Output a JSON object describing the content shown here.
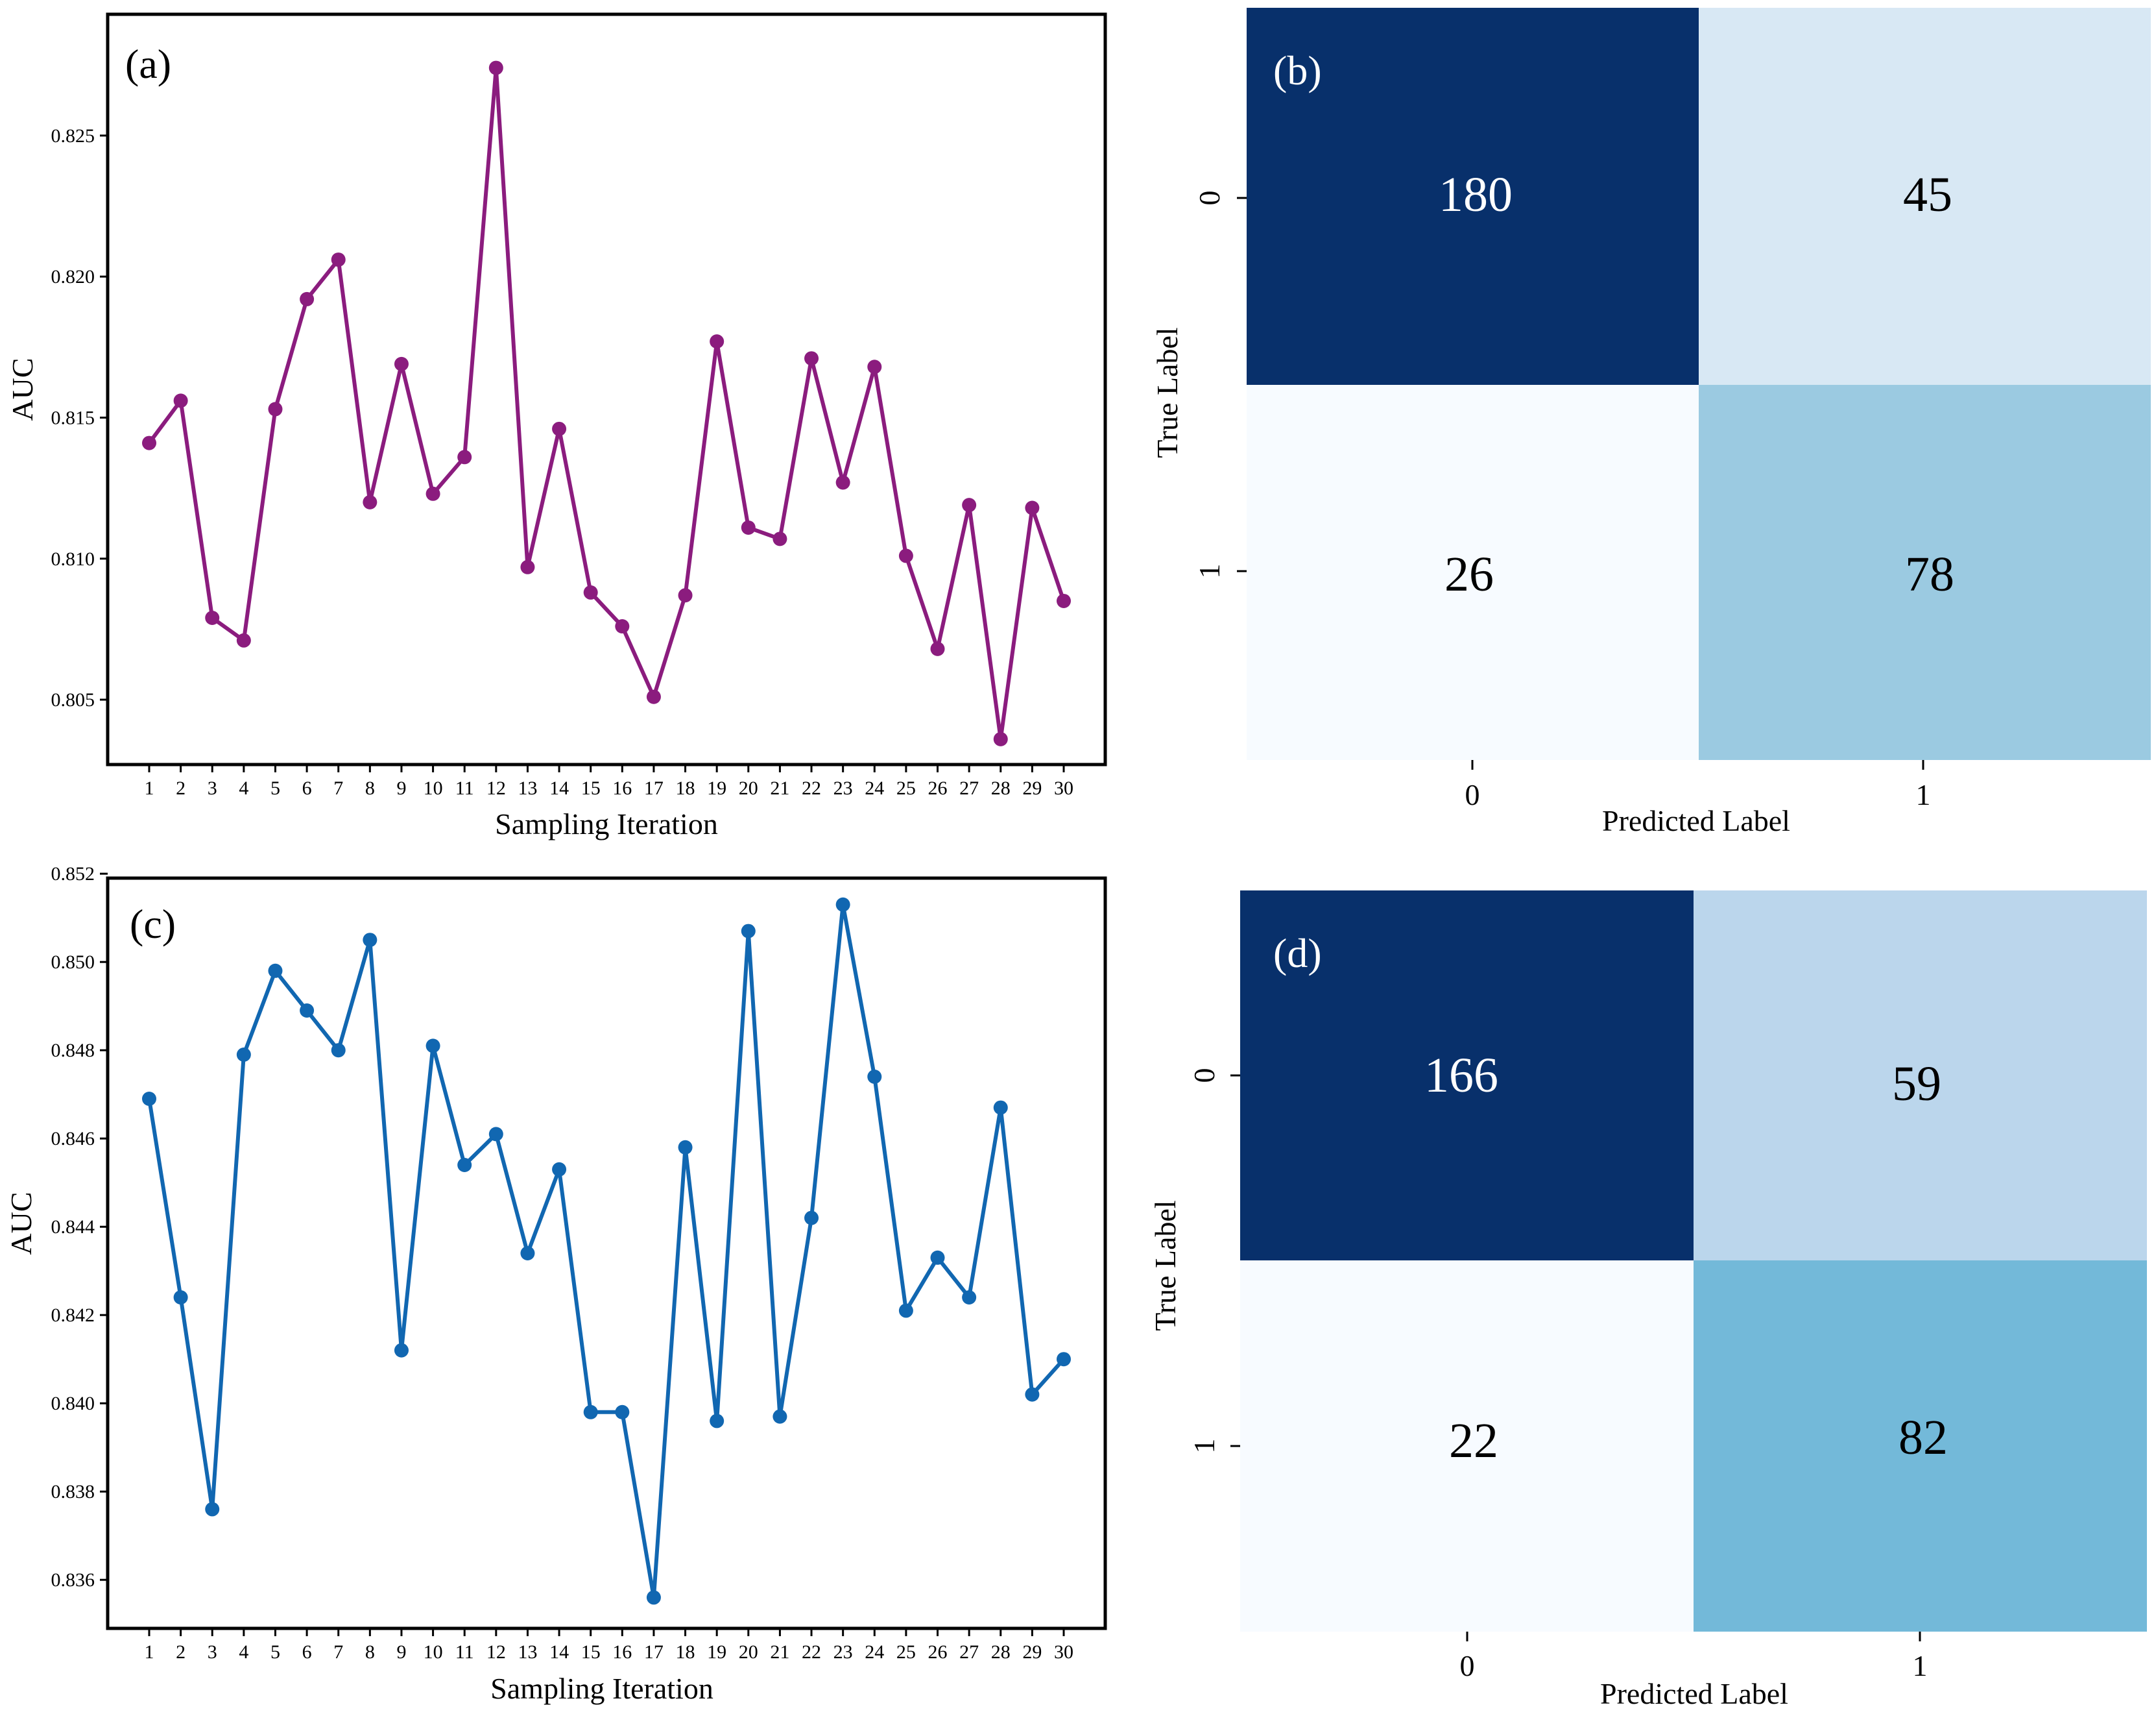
{
  "chart_data": [
    {
      "panel": "(a)",
      "type": "line",
      "xlabel": "Sampling Iteration",
      "ylabel": "AUC",
      "color": "#8B1C7E",
      "x": [
        1,
        2,
        3,
        4,
        5,
        6,
        7,
        8,
        9,
        10,
        11,
        12,
        13,
        14,
        15,
        16,
        17,
        18,
        19,
        20,
        21,
        22,
        23,
        24,
        25,
        26,
        27,
        28,
        29,
        30
      ],
      "values": [
        0.8141,
        0.8156,
        0.8079,
        0.8071,
        0.8153,
        0.8192,
        0.8206,
        0.812,
        0.8169,
        0.8123,
        0.8136,
        0.8274,
        0.8097,
        0.8146,
        0.8088,
        0.8076,
        0.8051,
        0.8087,
        0.8177,
        0.8111,
        0.8107,
        0.8171,
        0.8127,
        0.8168,
        0.8101,
        0.8068,
        0.8119,
        0.8036,
        0.8118,
        0.8085
      ],
      "yticks": [
        "0.805",
        "0.810",
        "0.815",
        "0.820",
        "0.825"
      ],
      "ylim": [
        0.8027,
        0.8293
      ]
    },
    {
      "panel": "(b)",
      "type": "heatmap",
      "xlabel": "Predicted Label",
      "ylabel": "True Label",
      "x_categories": [
        "0",
        "1"
      ],
      "y_categories": [
        "0",
        "1"
      ],
      "values": [
        [
          180,
          45
        ],
        [
          26,
          78
        ]
      ],
      "cell_colors": [
        [
          "#08306B",
          "#D8E8F4"
        ],
        [
          "#F7FBFF",
          "#9BCAE1"
        ]
      ],
      "text_colors": [
        [
          "#ffffff",
          "#000000"
        ],
        [
          "#000000",
          "#000000"
        ]
      ]
    },
    {
      "panel": "(c)",
      "type": "line",
      "xlabel": "Sampling Iteration",
      "ylabel": "AUC",
      "color": "#1167B1",
      "x": [
        1,
        2,
        3,
        4,
        5,
        6,
        7,
        8,
        9,
        10,
        11,
        12,
        13,
        14,
        15,
        16,
        17,
        18,
        19,
        20,
        21,
        22,
        23,
        24,
        25,
        26,
        27,
        28,
        29,
        30
      ],
      "values": [
        0.8469,
        0.8424,
        0.8376,
        0.8479,
        0.8498,
        0.8489,
        0.848,
        0.8505,
        0.8412,
        0.8481,
        0.8454,
        0.8461,
        0.8434,
        0.8453,
        0.8398,
        0.8398,
        0.8356,
        0.8458,
        0.8396,
        0.8507,
        0.8397,
        0.8442,
        0.8513,
        0.8474,
        0.8421,
        0.8433,
        0.8424,
        0.8467,
        0.8402,
        0.841
      ],
      "yticks": [
        "0.836",
        "0.838",
        "0.840",
        "0.842",
        "0.844",
        "0.846",
        "0.848",
        "0.850",
        "0.852"
      ],
      "ylim": [
        0.8349,
        0.8519
      ]
    },
    {
      "panel": "(d)",
      "type": "heatmap",
      "xlabel": "Predicted Label",
      "ylabel": "True Label",
      "x_categories": [
        "0",
        "1"
      ],
      "y_categories": [
        "0",
        "1"
      ],
      "values": [
        [
          166,
          59
        ],
        [
          22,
          82
        ]
      ],
      "cell_colors": [
        [
          "#08306B",
          "#BBD6EC"
        ],
        [
          "#F7FBFF",
          "#73B9D9"
        ]
      ],
      "text_colors": [
        [
          "#ffffff",
          "#000000"
        ],
        [
          "#000000",
          "#000000"
        ]
      ]
    }
  ]
}
